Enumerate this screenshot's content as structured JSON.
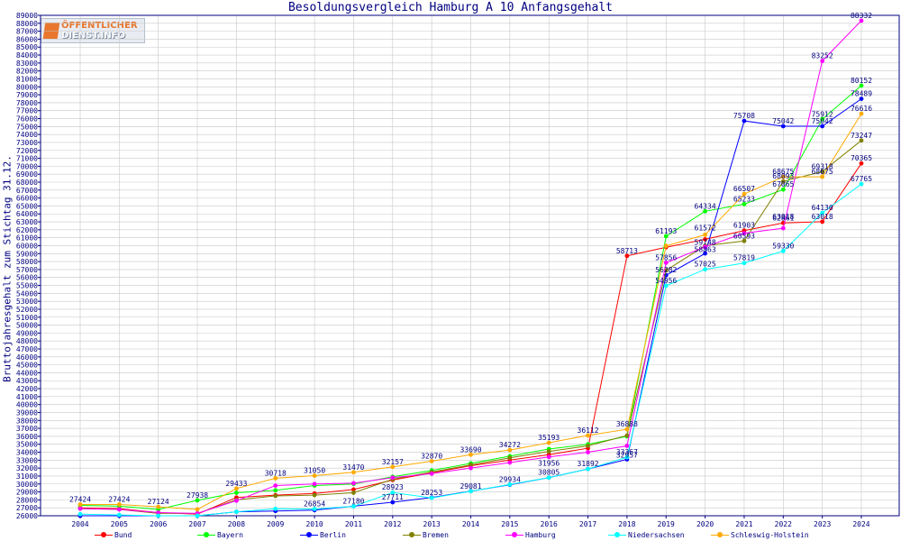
{
  "colors": {
    "axis": "#000080",
    "grid": "#c8c8c8",
    "logo_orange": "#e8762c"
  },
  "logo": {
    "line1": "ÖFFENTLICHER",
    "line2": "DIENST.INFO",
    "icon": "oeffentlicher-dienst-logo-icon"
  },
  "chart_data": {
    "type": "line",
    "title": "Besoldungsvergleich Hamburg A 10 Anfangsgehalt",
    "xlabel": "",
    "ylabel": "Bruttojahresgehalt zum Stichtag 31.12.",
    "ylim": [
      26000,
      89000
    ],
    "ytick_step": 1000,
    "grid": true,
    "legend_position": "bottom",
    "categories": [
      "2004",
      "2005",
      "2006",
      "2007",
      "2008",
      "2009",
      "2010",
      "2011",
      "2012",
      "2013",
      "2014",
      "2015",
      "2016",
      "2017",
      "2018",
      "2019",
      "2020",
      "2021",
      "2022",
      "2023",
      "2024"
    ],
    "series": [
      {
        "name": "Bund",
        "color": "#ff0000",
        "values": [
          27000,
          26900,
          26400,
          26200,
          28300,
          28600,
          28800,
          29300,
          30500,
          31400,
          32300,
          33000,
          33700,
          34500,
          58713,
          59800,
          60800,
          61903,
          62861,
          63018,
          70365
        ]
      },
      {
        "name": "Bayern",
        "color": "#00ff00",
        "values": [
          27300,
          27200,
          26800,
          27938,
          28900,
          29200,
          29800,
          30000,
          30900,
          31700,
          32600,
          33500,
          34400,
          35000,
          36000,
          61193,
          64334,
          65233,
          67065,
          75912,
          80152
        ]
      },
      {
        "name": "Berlin",
        "color": "#0000ff",
        "values": [
          26000,
          26000,
          26000,
          26000,
          26500,
          26600,
          26700,
          27200,
          27700,
          28300,
          29100,
          29900,
          30800,
          31892,
          33100,
          56282,
          59025,
          75708,
          75042,
          75042,
          78489
        ]
      },
      {
        "name": "Bremen",
        "color": "#808000",
        "values": [
          26900,
          26800,
          26300,
          26300,
          28000,
          28500,
          28600,
          28900,
          30600,
          31500,
          32400,
          33300,
          34100,
          34800,
          36100,
          56900,
          60000,
          60593,
          68093,
          69318,
          73247
        ]
      },
      {
        "name": "Hamburg",
        "color": "#ff00ff",
        "values": [
          26900,
          26800,
          26400,
          26300,
          27900,
          29800,
          30000,
          30100,
          30800,
          31300,
          32000,
          32700,
          33400,
          34000,
          34800,
          57856,
          59863,
          61572,
          62200,
          83252,
          88332
        ]
      },
      {
        "name": "Niedersachsen",
        "color": "#00ffff",
        "values": [
          26200,
          26100,
          26000,
          26000,
          26500,
          26869,
          26854,
          27180,
          28923,
          28253,
          29081,
          29934,
          30805,
          31892,
          33367,
          54956,
          57025,
          57819,
          59330,
          64130,
          67765
        ]
      },
      {
        "name": "Schleswig-Holstein",
        "color": "#ffaa00",
        "values": [
          27424,
          27424,
          27124,
          26800,
          29433,
          30718,
          31050,
          31470,
          32157,
          32870,
          33690,
          34272,
          35193,
          36112,
          36888,
          59983,
          61374,
          66507,
          68675,
          68675,
          76616
        ]
      }
    ],
    "labels": [
      {
        "text": "27424",
        "x": "2004",
        "y": 27424
      },
      {
        "text": "27424",
        "x": "2005",
        "y": 27424
      },
      {
        "text": "27124",
        "x": "2006",
        "y": 27124
      },
      {
        "text": "27938",
        "x": "2007",
        "y": 27938
      },
      {
        "text": "29433",
        "x": "2008",
        "y": 29433
      },
      {
        "text": "30718",
        "x": "2009",
        "y": 30718
      },
      {
        "text": "31050",
        "x": "2010",
        "y": 31050
      },
      {
        "text": "26854",
        "x": "2010",
        "y": 26854
      },
      {
        "text": "31470",
        "x": "2011",
        "y": 31470
      },
      {
        "text": "27180",
        "x": "2011",
        "y": 27180
      },
      {
        "text": "32157",
        "x": "2012",
        "y": 32157
      },
      {
        "text": "27711",
        "x": "2012",
        "y": 27711
      },
      {
        "text": "28923",
        "x": "2012",
        "y": 28923
      },
      {
        "text": "32870",
        "x": "2013",
        "y": 32870
      },
      {
        "text": "28253",
        "x": "2013",
        "y": 28253
      },
      {
        "text": "33690",
        "x": "2014",
        "y": 33690
      },
      {
        "text": "29081",
        "x": "2014",
        "y": 29081
      },
      {
        "text": "34272",
        "x": "2015",
        "y": 34272
      },
      {
        "text": "29934",
        "x": "2015",
        "y": 29934
      },
      {
        "text": "35193",
        "x": "2016",
        "y": 35193
      },
      {
        "text": "30805",
        "x": "2016",
        "y": 30805
      },
      {
        "text": "31956",
        "x": "2016",
        "y": 31956
      },
      {
        "text": "36112",
        "x": "2017",
        "y": 36112
      },
      {
        "text": "31892",
        "x": "2017",
        "y": 31892
      },
      {
        "text": "36888",
        "x": "2018",
        "y": 36888
      },
      {
        "text": "33367",
        "x": "2018",
        "y": 33367
      },
      {
        "text": "32957",
        "x": "2018",
        "y": 32957
      },
      {
        "text": "58713",
        "x": "2018",
        "y": 58713
      },
      {
        "text": "61193",
        "x": "2019",
        "y": 61193
      },
      {
        "text": "57856",
        "x": "2019",
        "y": 57856
      },
      {
        "text": "56282",
        "x": "2019",
        "y": 56282
      },
      {
        "text": "54956",
        "x": "2019",
        "y": 54956
      },
      {
        "text": "64334",
        "x": "2020",
        "y": 64334
      },
      {
        "text": "61572",
        "x": "2020",
        "y": 61572
      },
      {
        "text": "59748",
        "x": "2020",
        "y": 59748
      },
      {
        "text": "58863",
        "x": "2020",
        "y": 58863
      },
      {
        "text": "57025",
        "x": "2020",
        "y": 57025
      },
      {
        "text": "75708",
        "x": "2021",
        "y": 75708
      },
      {
        "text": "66507",
        "x": "2021",
        "y": 66507
      },
      {
        "text": "65233",
        "x": "2021",
        "y": 65233
      },
      {
        "text": "61903",
        "x": "2021",
        "y": 61903
      },
      {
        "text": "60593",
        "x": "2021",
        "y": 60593
      },
      {
        "text": "57819",
        "x": "2021",
        "y": 57819
      },
      {
        "text": "75042",
        "x": "2022",
        "y": 75042
      },
      {
        "text": "68675",
        "x": "2022",
        "y": 68675
      },
      {
        "text": "68093",
        "x": "2022",
        "y": 68093
      },
      {
        "text": "67065",
        "x": "2022",
        "y": 67065
      },
      {
        "text": "63018",
        "x": "2022",
        "y": 63018
      },
      {
        "text": "62861",
        "x": "2022",
        "y": 62861
      },
      {
        "text": "59330",
        "x": "2022",
        "y": 59330
      },
      {
        "text": "83252",
        "x": "2023",
        "y": 83252
      },
      {
        "text": "75912",
        "x": "2023",
        "y": 75912
      },
      {
        "text": "75042",
        "x": "2023",
        "y": 75042
      },
      {
        "text": "69318",
        "x": "2023",
        "y": 69318
      },
      {
        "text": "68675",
        "x": "2023",
        "y": 68675
      },
      {
        "text": "64130",
        "x": "2023",
        "y": 64130
      },
      {
        "text": "63018",
        "x": "2023",
        "y": 63018
      },
      {
        "text": "88332",
        "x": "2024",
        "y": 88332
      },
      {
        "text": "80152",
        "x": "2024",
        "y": 80152
      },
      {
        "text": "78489",
        "x": "2024",
        "y": 78489
      },
      {
        "text": "76616",
        "x": "2024",
        "y": 76616
      },
      {
        "text": "73247",
        "x": "2024",
        "y": 73247
      },
      {
        "text": "70365",
        "x": "2024",
        "y": 70365
      },
      {
        "text": "67765",
        "x": "2024",
        "y": 67765
      }
    ]
  }
}
